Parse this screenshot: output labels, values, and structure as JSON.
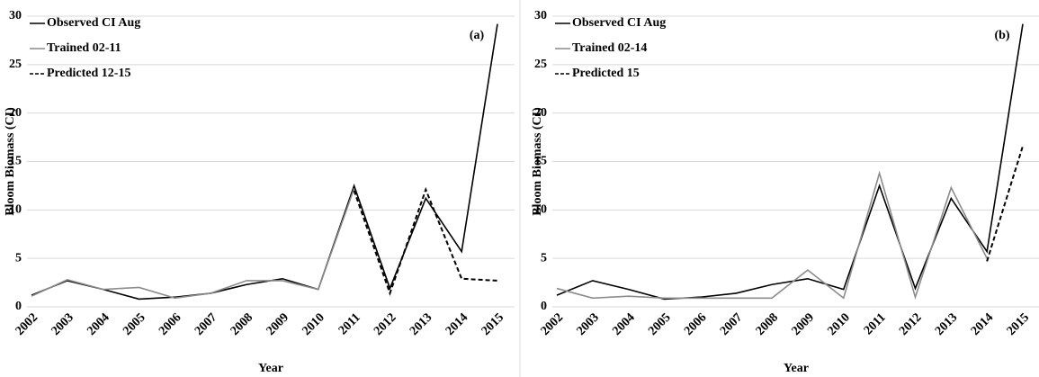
{
  "chart_data": [
    {
      "type": "line",
      "annotation": "(a)",
      "x_label": "Year",
      "y_label": "Bloom Biomass (CI)",
      "categories": [
        "2002",
        "2003",
        "2004",
        "2005",
        "2006",
        "2007",
        "2008",
        "2009",
        "2010",
        "2011",
        "2012",
        "2013",
        "2014",
        "2015"
      ],
      "series": [
        {
          "name": "Observed CI Aug",
          "color": "#000000",
          "dashed": false,
          "values": [
            1.2,
            2.7,
            1.8,
            0.8,
            1.0,
            1.4,
            2.3,
            2.9,
            1.8,
            12.5,
            1.9,
            11.2,
            5.7,
            29.2
          ]
        },
        {
          "name": "Trained 02-11",
          "color": "#8c8c8c",
          "dashed": false,
          "values": [
            1.1,
            2.8,
            1.8,
            2.0,
            0.9,
            1.4,
            2.7,
            2.7,
            1.8,
            12.2,
            null,
            null,
            null,
            null
          ]
        },
        {
          "name": "Predicted 12-15",
          "color": "#000000",
          "dashed": true,
          "values": [
            null,
            null,
            null,
            null,
            null,
            null,
            null,
            null,
            null,
            12.0,
            1.4,
            12.1,
            2.9,
            2.7
          ]
        }
      ],
      "ylim": [
        0,
        30
      ],
      "yticks": [
        0,
        5,
        10,
        15,
        20,
        25,
        30
      ],
      "grid": true
    },
    {
      "type": "line",
      "annotation": "(b)",
      "x_label": "Year",
      "y_label": "Bloom Biomass (CI)",
      "categories": [
        "2002",
        "2003",
        "2004",
        "2005",
        "2006",
        "2007",
        "2008",
        "2009",
        "2010",
        "2011",
        "2012",
        "2013",
        "2014",
        "2015"
      ],
      "series": [
        {
          "name": "Observed CI Aug",
          "color": "#000000",
          "dashed": false,
          "values": [
            1.2,
            2.7,
            1.8,
            0.8,
            1.0,
            1.4,
            2.3,
            2.9,
            1.8,
            12.5,
            1.9,
            11.2,
            5.7,
            29.2
          ]
        },
        {
          "name": "Trained 02-14",
          "color": "#8c8c8c",
          "dashed": false,
          "values": [
            1.9,
            0.9,
            1.1,
            0.9,
            0.9,
            0.9,
            0.9,
            3.8,
            0.9,
            13.8,
            1.0,
            12.3,
            5.0,
            null
          ]
        },
        {
          "name": "Predicted 15",
          "color": "#000000",
          "dashed": true,
          "values": [
            null,
            null,
            null,
            null,
            null,
            null,
            null,
            null,
            null,
            null,
            null,
            null,
            4.7,
            16.6
          ]
        }
      ],
      "ylim": [
        0,
        30
      ],
      "yticks": [
        0,
        5,
        10,
        15,
        20,
        25,
        30
      ],
      "grid": true
    }
  ]
}
